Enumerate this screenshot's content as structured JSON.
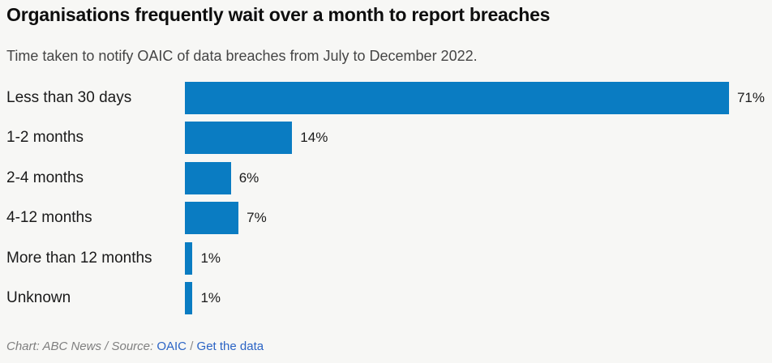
{
  "chart_data": {
    "type": "bar",
    "orientation": "horizontal",
    "title": "Organisations frequently wait over a month to report breaches",
    "subtitle": "Time taken to notify OAIC of data breaches from July to December 2022.",
    "categories": [
      "Less than 30 days",
      "1-2 months",
      "2-4 months",
      "4-12 months",
      "More than 12 months",
      "Unknown"
    ],
    "values": [
      71,
      14,
      6,
      7,
      1,
      1
    ],
    "value_labels": [
      "71%",
      "14%",
      "6%",
      "7%",
      "1%",
      "1%"
    ],
    "value_suffix": "%",
    "xlim": [
      0,
      75
    ],
    "grid": false,
    "legend": "none",
    "bar_color": "#0a7cc2"
  },
  "footer": {
    "attribution": "Chart: ABC News / Source:",
    "source_link": "OAIC",
    "separator": "/",
    "data_link": "Get the data"
  },
  "colors": {
    "background": "#f7f7f5",
    "bar": "#0a7cc2",
    "title_text": "#0e0e0e",
    "subtitle_text": "#454545",
    "label_text": "#1a1a1a",
    "footer_text": "#7f7f7f",
    "link": "#2b64c5"
  }
}
